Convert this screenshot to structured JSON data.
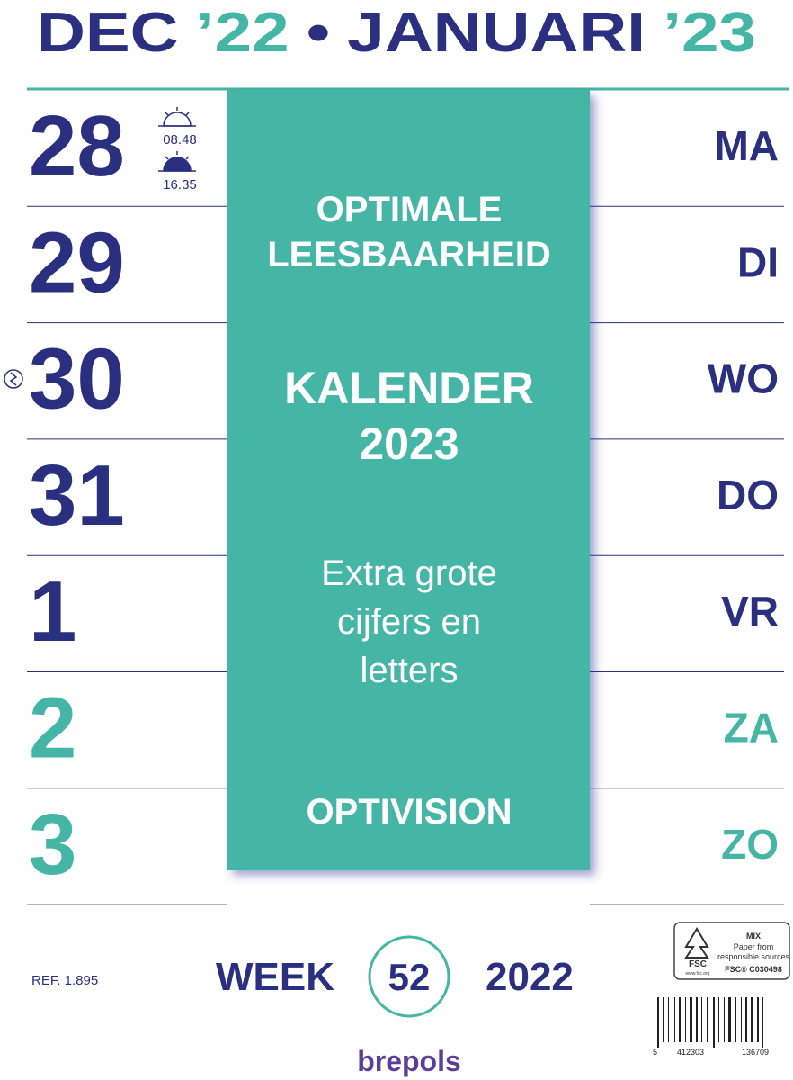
{
  "header": {
    "parts": [
      {
        "text": "DEC",
        "color": "#2b2f80"
      },
      {
        "text": "’22",
        "color": "#45b5a6"
      },
      {
        "text": "•",
        "color": "#2b2f80"
      },
      {
        "text": "JANUARI",
        "color": "#2b2f80"
      },
      {
        "text": "’23",
        "color": "#45b5a6"
      }
    ]
  },
  "days": [
    {
      "number": "28",
      "weekday": "MA",
      "color": "#2b2f80"
    },
    {
      "number": "29",
      "weekday": "DI",
      "color": "#2b2f80"
    },
    {
      "number": "30",
      "weekday": "WO",
      "color": "#2b2f80"
    },
    {
      "number": "31",
      "weekday": "DO",
      "color": "#2b2f80"
    },
    {
      "number": "1",
      "weekday": "VR",
      "color": "#2b2f80"
    },
    {
      "number": "2",
      "weekday": "ZA",
      "color": "#45b5a6"
    },
    {
      "number": "3",
      "weekday": "ZO",
      "color": "#45b5a6"
    }
  ],
  "sun": {
    "sunrise": "08.48",
    "sunset": "16.35"
  },
  "panel": {
    "groups": [
      {
        "lines": [
          "OPTIMALE",
          "LEESBAARHEID"
        ]
      },
      {
        "lines": [
          "KALENDER",
          "2023"
        ]
      },
      {
        "lines": [
          "Extra grote",
          "cijfers en",
          "letters"
        ]
      },
      {
        "lines": [
          "OPTIVISION"
        ]
      }
    ]
  },
  "footer": {
    "ref": "REF. 1.895",
    "week_label": "WEEK",
    "week_number": "52",
    "year": "2022",
    "brand": "brepols"
  },
  "fsc": {
    "mix": "MIX",
    "line1": "Paper from",
    "line2": "responsible sources",
    "code": "FSC® C030498",
    "logo": "FSC",
    "url": "www.fsc.org"
  },
  "barcode": {
    "digits": [
      "5",
      "412303",
      "136709"
    ]
  }
}
